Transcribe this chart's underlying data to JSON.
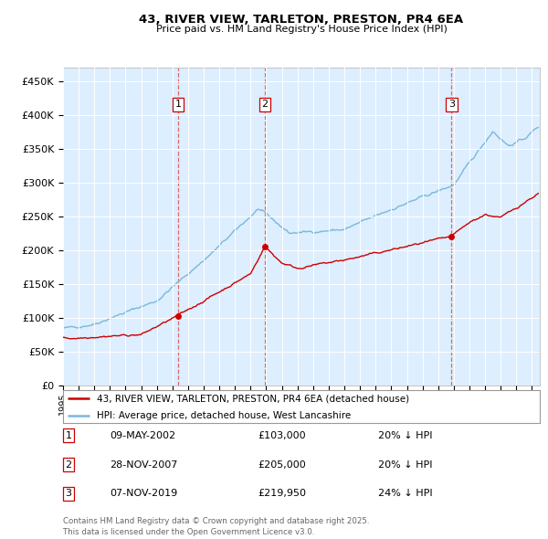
{
  "title": "43, RIVER VIEW, TARLETON, PRESTON, PR4 6EA",
  "subtitle": "Price paid vs. HM Land Registry's House Price Index (HPI)",
  "ylabel_ticks": [
    "£0",
    "£50K",
    "£100K",
    "£150K",
    "£200K",
    "£250K",
    "£300K",
    "£350K",
    "£400K",
    "£450K"
  ],
  "ytick_values": [
    0,
    50000,
    100000,
    150000,
    200000,
    250000,
    300000,
    350000,
    400000,
    450000
  ],
  "ylim": [
    0,
    470000
  ],
  "xlim_start": 1995.0,
  "xlim_end": 2025.5,
  "hpi_color": "#7ab8d8",
  "price_color": "#cc0000",
  "marker_color": "#cc0000",
  "dashed_color": "#e05050",
  "sale_dates": [
    2002.36,
    2007.91,
    2019.85
  ],
  "sale_prices": [
    103000,
    205000,
    219950
  ],
  "sale_labels": [
    "1",
    "2",
    "3"
  ],
  "legend_price_label": "43, RIVER VIEW, TARLETON, PRESTON, PR4 6EA (detached house)",
  "legend_hpi_label": "HPI: Average price, detached house, West Lancashire",
  "table_entries": [
    {
      "num": "1",
      "date": "09-MAY-2002",
      "price": "£103,000",
      "note": "20% ↓ HPI"
    },
    {
      "num": "2",
      "date": "28-NOV-2007",
      "price": "£205,000",
      "note": "20% ↓ HPI"
    },
    {
      "num": "3",
      "date": "07-NOV-2019",
      "price": "£219,950",
      "note": "24% ↓ HPI"
    }
  ],
  "footer": "Contains HM Land Registry data © Crown copyright and database right 2025.\nThis data is licensed under the Open Government Licence v3.0.",
  "background_color": "#ffffff",
  "plot_bg_color": "#ddeeff"
}
